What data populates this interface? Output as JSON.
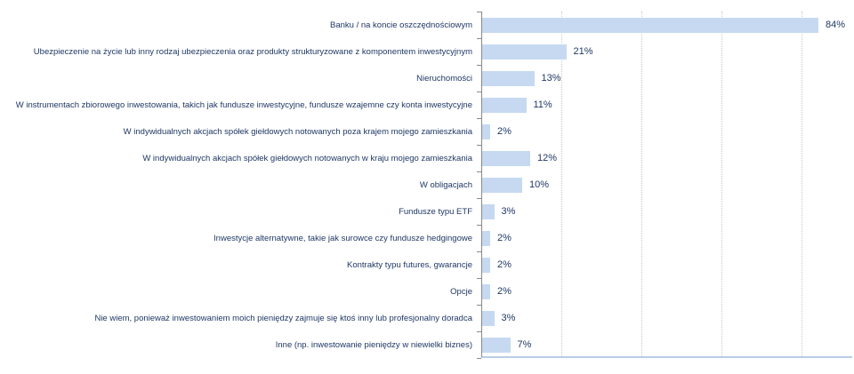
{
  "chart_data": {
    "type": "bar",
    "orientation": "horizontal",
    "title": "",
    "xlabel": "",
    "ylabel": "",
    "categories": [
      "Banku / na koncie oszczędnościowym",
      "Ubezpieczenie na życie lub inny rodzaj ubezpieczenia oraz produkty strukturyzowane z komponentem inwestycyjnym",
      "Nieruchomości",
      "W instrumentach zbiorowego inwestowania, takich jak fundusze inwestycyjne, fundusze wzajemne czy konta inwestycyjne",
      "W indywidualnych akcjach spółek giełdowych notowanych poza krajem mojego zamieszkania",
      "W indywidualnych akcjach spółek giełdowych notowanych w kraju mojego zamieszkania",
      "W obligacjach",
      "Fundusze typu ETF",
      "Inwestycje alternatywne, takie jak surowce czy fundusze hedgingowe",
      "Kontrakty typu futures, gwarancje",
      "Opcje",
      "Nie wiem, ponieważ inwestowaniem moich pieniędzy zajmuje się ktoś inny lub profesjonalny doradca",
      "Inne (np. inwestowanie pieniędzy w niewielki biznes)"
    ],
    "values": [
      84,
      21,
      13,
      11,
      2,
      12,
      10,
      3,
      2,
      2,
      2,
      3,
      7
    ],
    "value_label_suffix": "%",
    "xlim": [
      0,
      92
    ],
    "gridline_interval_percent": 20,
    "grid": true,
    "legend": "none",
    "colors": {
      "bar_fill": "#c6d9f1",
      "text": "#1f3864",
      "axis_line": "#8a8a8a",
      "gridline": "#c9c9c9",
      "plot_bottom_border": "#b9cde5"
    }
  }
}
